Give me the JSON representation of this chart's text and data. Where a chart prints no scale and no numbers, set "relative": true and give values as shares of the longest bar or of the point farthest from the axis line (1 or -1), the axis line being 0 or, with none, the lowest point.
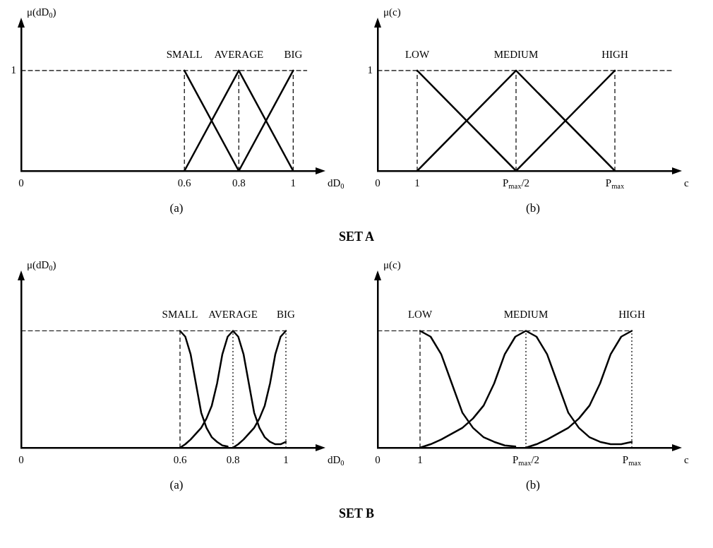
{
  "chart_data": [
    {
      "type": "line",
      "xlabel": "dD$_{0}$",
      "ylabel": "μ(dD$_{0}$)",
      "relative": true,
      "xlim": [
        0,
        1.09
      ],
      "xticks": [
        0,
        0.6,
        0.8,
        1
      ],
      "marker": "none",
      "annotations": [
        "(a)",
        "1"
      ],
      "ref_lines": [
        {
          "axis": "x",
          "value": 0.6,
          "line_style": "dashed"
        },
        {
          "axis": "x",
          "value": 0.8,
          "line_style": "dashed"
        },
        {
          "axis": "x",
          "value": 1,
          "line_style": "dashed"
        }
      ],
      "series": [
        {
          "color": "#000000",
          "line_style": "dashed",
          "x": [
            0,
            1.05
          ],
          "values": [
            1,
            1
          ]
        },
        {
          "name": "SMALL",
          "color": "#000000",
          "x": [
            0.6,
            0.8
          ],
          "values": [
            1,
            0
          ]
        },
        {
          "name": "AVERAGE",
          "color": "#000000",
          "x": [
            0.6,
            0.8,
            1
          ],
          "values": [
            0,
            1,
            0
          ]
        },
        {
          "name": "BIG",
          "color": "#000000",
          "x": [
            0.8,
            1
          ],
          "values": [
            0,
            1
          ]
        }
      ]
    },
    {
      "type": "line",
      "xlabel": "c",
      "ylabel": "μ(c)",
      "categories": [
        "0",
        null,
        "1",
        null,
        null,
        null,
        null,
        "P$_{max}$/2",
        null,
        null,
        null,
        null,
        "P$_{max}$",
        null,
        null,
        null
      ],
      "relative": true,
      "marker": "none",
      "annotations": [
        "(b)",
        "1"
      ],
      "ref_lines": [
        {
          "axis": "x",
          "value": "1",
          "line_style": "dashed"
        },
        {
          "axis": "x",
          "value": "P$_{max}$/2",
          "line_style": "dashed"
        },
        {
          "axis": "x",
          "value": "P$_{max}$",
          "line_style": "dashed"
        }
      ],
      "series": [
        {
          "color": "#000000",
          "line_style": "dashed",
          "values": [
            1,
            null,
            null,
            null,
            null,
            null,
            null,
            null,
            null,
            null,
            null,
            null,
            null,
            null,
            null,
            1
          ]
        },
        {
          "name": "LOW",
          "color": "#000000",
          "values": [
            null,
            null,
            1,
            null,
            null,
            null,
            null,
            0,
            null,
            null,
            null,
            null,
            null,
            null,
            null,
            null
          ]
        },
        {
          "name": "MEDIUM",
          "color": "#000000",
          "values": [
            null,
            null,
            0,
            null,
            null,
            null,
            null,
            1,
            null,
            null,
            null,
            null,
            0,
            null,
            null,
            null
          ]
        },
        {
          "name": "HIGH",
          "color": "#000000",
          "values": [
            null,
            null,
            null,
            null,
            null,
            null,
            null,
            0,
            null,
            null,
            null,
            null,
            1,
            null,
            null,
            null
          ]
        }
      ]
    },
    {
      "type": "other",
      "title": "SET A"
    },
    {
      "type": "line",
      "xlabel": "dD$_{0}$",
      "ylabel": "μ(dD$_{0}$)",
      "relative": true,
      "xlim": [
        0,
        1.12
      ],
      "xticks": [
        0,
        0.6,
        0.8,
        1
      ],
      "marker": "none",
      "annotations": [
        "(a)"
      ],
      "ref_lines": [
        {
          "axis": "x",
          "value": 0.6,
          "line_style": "dashed"
        },
        {
          "axis": "x",
          "value": 0.8,
          "line_style": "dotted"
        },
        {
          "axis": "x",
          "value": 1,
          "line_style": "dotted"
        }
      ],
      "series": [
        {
          "color": "#000000",
          "line_style": "dashed",
          "x": [
            0,
            1
          ],
          "values": [
            1,
            1
          ]
        },
        {
          "name": "SMALL",
          "color": "#000000",
          "x": [
            0.6,
            0.62,
            0.64,
            0.66,
            0.68,
            0.7,
            0.72,
            0.74,
            0.76,
            0.78
          ],
          "values": [
            1,
            0.95,
            0.8,
            0.55,
            0.3,
            0.17,
            0.09,
            0.05,
            0.02,
            0.01
          ]
        },
        {
          "name": "AVERAGE",
          "color": "#000000",
          "x": [
            0.6,
            0.62,
            0.64,
            0.66,
            0.68,
            0.7,
            0.72,
            0.74,
            0.76,
            0.78,
            0.8,
            0.82,
            0.84,
            0.86,
            0.88,
            0.9,
            0.92,
            0.94,
            0.96,
            0.98,
            1
          ],
          "values": [
            0,
            0.03,
            0.07,
            0.12,
            0.17,
            0.25,
            0.36,
            0.55,
            0.8,
            0.95,
            1,
            0.95,
            0.8,
            0.55,
            0.3,
            0.17,
            0.09,
            0.05,
            0.03,
            0.03,
            0.05
          ]
        },
        {
          "name": "BIG",
          "color": "#000000",
          "x": [
            0.8,
            0.82,
            0.84,
            0.86,
            0.88,
            0.9,
            0.92,
            0.94,
            0.96,
            0.98,
            1
          ],
          "values": [
            0,
            0.03,
            0.07,
            0.12,
            0.17,
            0.25,
            0.36,
            0.55,
            0.8,
            0.95,
            1
          ]
        }
      ]
    },
    {
      "type": "line",
      "xlabel": "c",
      "ylabel": "μ(c)",
      "relative": true,
      "categories": [
        "0",
        null,
        null,
        null,
        "1",
        null,
        null,
        null,
        null,
        null,
        null,
        null,
        null,
        null,
        "P$_{max}$/2",
        null,
        null,
        null,
        null,
        null,
        null,
        null,
        null,
        null,
        "P$_{max}$",
        null,
        null,
        null,
        null
      ],
      "marker": "none",
      "annotations": [
        "(b)"
      ],
      "ref_lines": [
        {
          "axis": "x",
          "value": "1",
          "line_style": "dashed"
        },
        {
          "axis": "x",
          "value": "P$_{max}$/2",
          "line_style": "dotted"
        },
        {
          "axis": "x",
          "value": "P$_{max}$",
          "line_style": "dotted"
        }
      ],
      "series": [
        {
          "color": "#000000",
          "line_style": "dashed",
          "values": [
            1,
            null,
            null,
            null,
            null,
            null,
            null,
            null,
            null,
            null,
            null,
            null,
            null,
            null,
            null,
            null,
            null,
            null,
            null,
            null,
            null,
            null,
            null,
            null,
            1,
            null,
            null,
            null,
            null
          ]
        },
        {
          "name": "LOW",
          "color": "#000000",
          "values": [
            null,
            null,
            null,
            null,
            1,
            0.95,
            0.8,
            0.55,
            0.3,
            0.17,
            0.09,
            0.05,
            0.02,
            0.01,
            null,
            null,
            null,
            null,
            null,
            null,
            null,
            null,
            null,
            null,
            null,
            null,
            null,
            null,
            null
          ]
        },
        {
          "name": "MEDIUM",
          "color": "#000000",
          "values": [
            null,
            null,
            null,
            null,
            0,
            0.03,
            0.07,
            0.12,
            0.17,
            0.25,
            0.36,
            0.55,
            0.8,
            0.95,
            1,
            0.95,
            0.8,
            0.55,
            0.3,
            0.17,
            0.09,
            0.05,
            0.03,
            0.03,
            0.05,
            null,
            null,
            null,
            null
          ]
        },
        {
          "name": "HIGH",
          "color": "#000000",
          "values": [
            null,
            null,
            null,
            null,
            null,
            null,
            null,
            null,
            null,
            null,
            null,
            null,
            null,
            null,
            0,
            0.03,
            0.07,
            0.12,
            0.17,
            0.25,
            0.36,
            0.55,
            0.8,
            0.95,
            1,
            null,
            null,
            null,
            null
          ]
        }
      ]
    },
    {
      "type": "other",
      "title": "SET B"
    }
  ]
}
